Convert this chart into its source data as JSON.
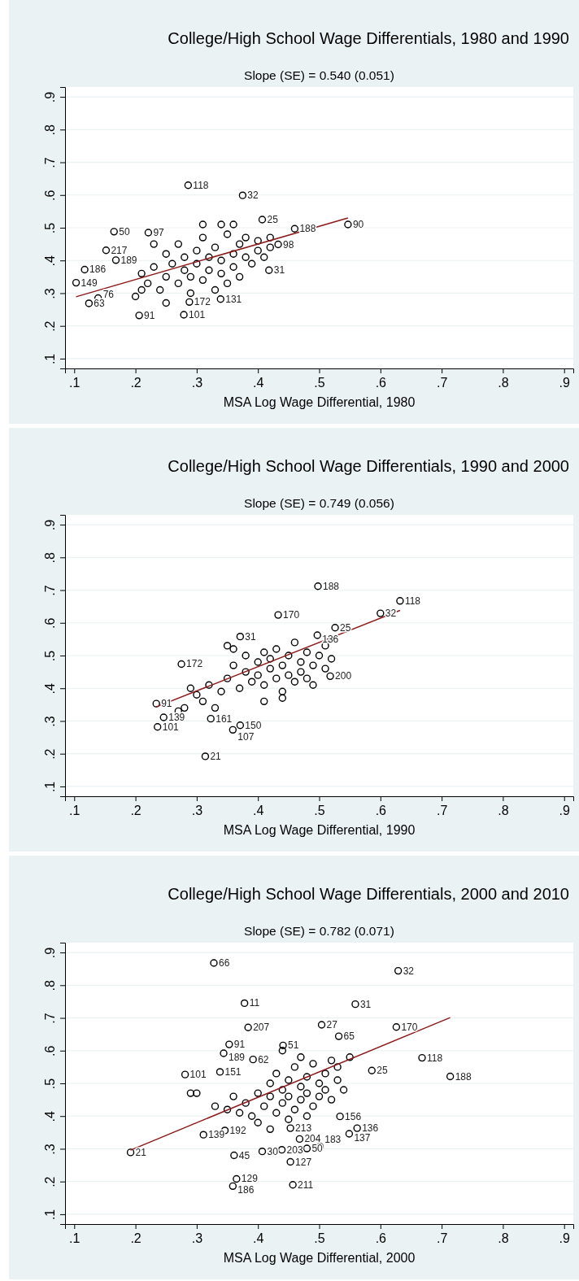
{
  "chart_data": [
    {
      "type": "scatter",
      "title": "College/High School Wage Differentials, 1980 and 1990",
      "subtitle": "Slope (SE) = 0.540 (0.051)",
      "xlabel": "MSA Log Wage Differential, 1980",
      "xlim": [
        0.085,
        0.915
      ],
      "ylim": [
        0.07,
        0.93
      ],
      "xticks": [
        {
          "value": 0.1,
          "label": ".1"
        },
        {
          "value": 0.2,
          "label": ".2"
        },
        {
          "value": 0.3,
          "label": ".3"
        },
        {
          "value": 0.4,
          "label": ".4"
        },
        {
          "value": 0.5,
          "label": ".5"
        },
        {
          "value": 0.6,
          "label": ".6"
        },
        {
          "value": 0.7,
          "label": ".7"
        },
        {
          "value": 0.8,
          "label": ".8"
        },
        {
          "value": 0.9,
          "label": ".9"
        }
      ],
      "yticks": [
        {
          "value": 0.1,
          "label": ".1"
        },
        {
          "value": 0.2,
          "label": ".2"
        },
        {
          "value": 0.3,
          "label": ".3"
        },
        {
          "value": 0.4,
          "label": ".4"
        },
        {
          "value": 0.5,
          "label": ".5"
        },
        {
          "value": 0.6,
          "label": ".6"
        },
        {
          "value": 0.7,
          "label": ".7"
        },
        {
          "value": 0.8,
          "label": ".8"
        },
        {
          "value": 0.9,
          "label": ".9"
        }
      ],
      "grid": "y",
      "marker": "circle",
      "series": [
        {
          "type": "scatter",
          "color": "#000000",
          "x": [
            0.286,
            0.375,
            0.547,
            0.407,
            0.46,
            0.165,
            0.221,
            0.152,
            0.168,
            0.117,
            0.103,
            0.124,
            0.139,
            0.206,
            0.279,
            0.339,
            0.288,
            0.433,
            0.418,
            0.21,
            0.22,
            0.23,
            0.24,
            0.25,
            0.25,
            0.26,
            0.27,
            0.27,
            0.28,
            0.28,
            0.29,
            0.29,
            0.3,
            0.3,
            0.31,
            0.31,
            0.32,
            0.32,
            0.33,
            0.33,
            0.34,
            0.34,
            0.35,
            0.35,
            0.36,
            0.36,
            0.37,
            0.37,
            0.38,
            0.38,
            0.39,
            0.4,
            0.4,
            0.41,
            0.42,
            0.42,
            0.36,
            0.31,
            0.34,
            0.23,
            0.21,
            0.25,
            0.2
          ],
          "values": [
            0.63,
            0.599,
            0.51,
            0.525,
            0.497,
            0.488,
            0.485,
            0.431,
            0.401,
            0.372,
            0.332,
            0.269,
            0.285,
            0.232,
            0.234,
            0.282,
            0.273,
            0.449,
            0.37,
            0.36,
            0.33,
            0.38,
            0.31,
            0.35,
            0.42,
            0.39,
            0.33,
            0.45,
            0.37,
            0.41,
            0.3,
            0.35,
            0.39,
            0.43,
            0.34,
            0.47,
            0.37,
            0.41,
            0.31,
            0.44,
            0.36,
            0.4,
            0.48,
            0.33,
            0.42,
            0.38,
            0.45,
            0.35,
            0.41,
            0.47,
            0.39,
            0.43,
            0.46,
            0.41,
            0.47,
            0.44,
            0.51,
            0.51,
            0.51,
            0.45,
            0.31,
            0.27,
            0.29
          ]
        },
        {
          "type": "line",
          "color": "#8b1a1a",
          "marker": "none",
          "x": [
            0.103,
            0.547
          ],
          "values": [
            0.289,
            0.53
          ]
        }
      ],
      "annotations": [
        {
          "text": "118",
          "x": 0.286,
          "y": 0.63
        },
        {
          "text": "32",
          "x": 0.375,
          "y": 0.599
        },
        {
          "text": "90",
          "x": 0.547,
          "y": 0.51
        },
        {
          "text": "25",
          "x": 0.407,
          "y": 0.525
        },
        {
          "text": "188",
          "x": 0.46,
          "y": 0.497
        },
        {
          "text": "50",
          "x": 0.165,
          "y": 0.488
        },
        {
          "text": "97",
          "x": 0.221,
          "y": 0.485
        },
        {
          "text": "217",
          "x": 0.152,
          "y": 0.431
        },
        {
          "text": "189",
          "x": 0.168,
          "y": 0.401
        },
        {
          "text": "186",
          "x": 0.117,
          "y": 0.372
        },
        {
          "text": "149",
          "x": 0.103,
          "y": 0.332
        },
        {
          "text": "63",
          "x": 0.124,
          "y": 0.269
        },
        {
          "text": "76",
          "x": 0.139,
          "y": 0.285
        },
        {
          "text": "91",
          "x": 0.206,
          "y": 0.232
        },
        {
          "text": "101",
          "x": 0.279,
          "y": 0.234
        },
        {
          "text": "131",
          "x": 0.339,
          "y": 0.282
        },
        {
          "text": "172",
          "x": 0.288,
          "y": 0.273
        },
        {
          "text": "98",
          "x": 0.433,
          "y": 0.449
        },
        {
          "text": "31",
          "x": 0.418,
          "y": 0.37
        }
      ]
    },
    {
      "type": "scatter",
      "title": "College/High School Wage Differentials, 1990 and 2000",
      "subtitle": "Slope (SE) = 0.749 (0.056)",
      "xlabel": "MSA Log Wage Differential, 1990",
      "xlim": [
        0.085,
        0.915
      ],
      "ylim": [
        0.07,
        0.93
      ],
      "xticks": [
        {
          "value": 0.1,
          "label": ".1"
        },
        {
          "value": 0.2,
          "label": ".2"
        },
        {
          "value": 0.3,
          "label": ".3"
        },
        {
          "value": 0.4,
          "label": ".4"
        },
        {
          "value": 0.5,
          "label": ".5"
        },
        {
          "value": 0.6,
          "label": ".6"
        },
        {
          "value": 0.7,
          "label": ".7"
        },
        {
          "value": 0.8,
          "label": ".8"
        },
        {
          "value": 0.9,
          "label": ".9"
        }
      ],
      "yticks": [
        {
          "value": 0.1,
          "label": ".1"
        },
        {
          "value": 0.2,
          "label": ".2"
        },
        {
          "value": 0.3,
          "label": ".3"
        },
        {
          "value": 0.4,
          "label": ".4"
        },
        {
          "value": 0.5,
          "label": ".5"
        },
        {
          "value": 0.6,
          "label": ".6"
        },
        {
          "value": 0.7,
          "label": ".7"
        },
        {
          "value": 0.8,
          "label": ".8"
        },
        {
          "value": 0.9,
          "label": ".9"
        }
      ],
      "grid": "y",
      "marker": "circle",
      "series": [
        {
          "type": "scatter",
          "color": "#000000",
          "x": [
            0.498,
            0.632,
            0.6,
            0.433,
            0.526,
            0.275,
            0.234,
            0.246,
            0.236,
            0.323,
            0.371,
            0.359,
            0.314,
            0.518,
            0.371,
            0.497,
            0.29,
            0.3,
            0.31,
            0.32,
            0.33,
            0.34,
            0.35,
            0.36,
            0.36,
            0.37,
            0.38,
            0.38,
            0.39,
            0.4,
            0.4,
            0.41,
            0.41,
            0.42,
            0.42,
            0.43,
            0.43,
            0.44,
            0.44,
            0.45,
            0.45,
            0.46,
            0.46,
            0.47,
            0.47,
            0.48,
            0.48,
            0.49,
            0.49,
            0.5,
            0.51,
            0.51,
            0.52,
            0.35,
            0.27,
            0.28,
            0.41,
            0.44
          ],
          "values": [
            0.712,
            0.667,
            0.629,
            0.624,
            0.585,
            0.474,
            0.353,
            0.311,
            0.282,
            0.307,
            0.287,
            0.273,
            0.192,
            0.437,
            0.558,
            0.562,
            0.4,
            0.38,
            0.36,
            0.41,
            0.34,
            0.39,
            0.43,
            0.47,
            0.52,
            0.4,
            0.45,
            0.5,
            0.42,
            0.48,
            0.44,
            0.51,
            0.41,
            0.46,
            0.49,
            0.43,
            0.52,
            0.47,
            0.39,
            0.5,
            0.44,
            0.54,
            0.42,
            0.48,
            0.45,
            0.51,
            0.43,
            0.47,
            0.41,
            0.5,
            0.46,
            0.53,
            0.49,
            0.53,
            0.33,
            0.34,
            0.36,
            0.37
          ]
        },
        {
          "type": "line",
          "color": "#8b1a1a",
          "marker": "none",
          "x": [
            0.234,
            0.632
          ],
          "values": [
            0.343,
            0.638
          ]
        }
      ],
      "annotations": [
        {
          "text": "188",
          "x": 0.498,
          "y": 0.712
        },
        {
          "text": "118",
          "x": 0.632,
          "y": 0.667
        },
        {
          "text": "32",
          "x": 0.6,
          "y": 0.629
        },
        {
          "text": "170",
          "x": 0.433,
          "y": 0.624
        },
        {
          "text": "25",
          "x": 0.526,
          "y": 0.585
        },
        {
          "text": "172",
          "x": 0.275,
          "y": 0.474
        },
        {
          "text": "91",
          "x": 0.234,
          "y": 0.353
        },
        {
          "text": "139",
          "x": 0.246,
          "y": 0.311
        },
        {
          "text": "101",
          "x": 0.236,
          "y": 0.282
        },
        {
          "text": "161",
          "x": 0.323,
          "y": 0.307
        },
        {
          "text": "150",
          "x": 0.371,
          "y": 0.287
        },
        {
          "text": "107",
          "x": 0.359,
          "y": 0.273
        },
        {
          "text": "21",
          "x": 0.314,
          "y": 0.192
        },
        {
          "text": "200",
          "x": 0.518,
          "y": 0.437
        },
        {
          "text": "31",
          "x": 0.371,
          "y": 0.558
        },
        {
          "text": "136",
          "x": 0.497,
          "y": 0.562
        }
      ]
    },
    {
      "type": "scatter",
      "title": "College/High School Wage Differentials, 2000 and 2010",
      "subtitle": "Slope (SE) = 0.782 (0.071)",
      "xlabel": "MSA Log Wage Differential, 2000",
      "xlim": [
        0.085,
        0.915
      ],
      "ylim": [
        0.07,
        0.93
      ],
      "xticks": [
        {
          "value": 0.1,
          "label": ".1"
        },
        {
          "value": 0.2,
          "label": ".2"
        },
        {
          "value": 0.3,
          "label": ".3"
        },
        {
          "value": 0.4,
          "label": ".4"
        },
        {
          "value": 0.5,
          "label": ".5"
        },
        {
          "value": 0.6,
          "label": ".6"
        },
        {
          "value": 0.7,
          "label": ".7"
        },
        {
          "value": 0.8,
          "label": ".8"
        },
        {
          "value": 0.9,
          "label": ".9"
        }
      ],
      "yticks": [
        {
          "value": 0.1,
          "label": ".1"
        },
        {
          "value": 0.2,
          "label": ".2"
        },
        {
          "value": 0.3,
          "label": ".3"
        },
        {
          "value": 0.4,
          "label": ".4"
        },
        {
          "value": 0.5,
          "label": ".5"
        },
        {
          "value": 0.6,
          "label": ".6"
        },
        {
          "value": 0.7,
          "label": ".7"
        },
        {
          "value": 0.8,
          "label": ".8"
        },
        {
          "value": 0.9,
          "label": ".9"
        }
      ],
      "grid": "y",
      "marker": "circle",
      "series": [
        {
          "type": "scatter",
          "color": "#000000",
          "x": [
            0.328,
            0.629,
            0.378,
            0.559,
            0.504,
            0.626,
            0.384,
            0.668,
            0.714,
            0.586,
            0.281,
            0.338,
            0.353,
            0.344,
            0.392,
            0.441,
            0.532,
            0.192,
            0.311,
            0.361,
            0.407,
            0.439,
            0.48,
            0.501,
            0.453,
            0.365,
            0.359,
            0.457,
            0.453,
            0.468,
            0.562,
            0.549,
            0.534,
            0.346,
            0.33,
            0.35,
            0.37,
            0.38,
            0.39,
            0.4,
            0.41,
            0.42,
            0.42,
            0.43,
            0.43,
            0.44,
            0.44,
            0.45,
            0.45,
            0.46,
            0.46,
            0.47,
            0.47,
            0.48,
            0.48,
            0.49,
            0.49,
            0.5,
            0.5,
            0.51,
            0.51,
            0.52,
            0.52,
            0.53,
            0.53,
            0.54,
            0.55,
            0.4,
            0.42,
            0.45,
            0.48,
            0.44,
            0.47,
            0.36,
            0.3,
            0.29
          ],
          "values": [
            0.868,
            0.844,
            0.745,
            0.742,
            0.679,
            0.672,
            0.671,
            0.578,
            0.521,
            0.539,
            0.527,
            0.535,
            0.619,
            0.592,
            0.573,
            0.616,
            0.644,
            0.289,
            0.343,
            0.28,
            0.292,
            0.297,
            0.301,
            0.307,
            0.26,
            0.208,
            0.186,
            0.19,
            0.363,
            0.33,
            0.363,
            0.346,
            0.399,
            0.356,
            0.43,
            0.42,
            0.41,
            0.44,
            0.4,
            0.47,
            0.43,
            0.5,
            0.46,
            0.41,
            0.53,
            0.48,
            0.44,
            0.51,
            0.46,
            0.55,
            0.42,
            0.49,
            0.45,
            0.52,
            0.47,
            0.56,
            0.43,
            0.5,
            0.46,
            0.53,
            0.48,
            0.57,
            0.45,
            0.51,
            0.55,
            0.48,
            0.58,
            0.38,
            0.36,
            0.39,
            0.4,
            0.6,
            0.58,
            0.46,
            0.47,
            0.47
          ]
        },
        {
          "type": "line",
          "color": "#8b1a1a",
          "marker": "none",
          "x": [
            0.192,
            0.714
          ],
          "values": [
            0.296,
            0.701
          ]
        }
      ],
      "annotations": [
        {
          "text": "66",
          "x": 0.328,
          "y": 0.868
        },
        {
          "text": "32",
          "x": 0.629,
          "y": 0.844
        },
        {
          "text": "11",
          "x": 0.378,
          "y": 0.745
        },
        {
          "text": "31",
          "x": 0.559,
          "y": 0.742
        },
        {
          "text": "27",
          "x": 0.504,
          "y": 0.679
        },
        {
          "text": "170",
          "x": 0.626,
          "y": 0.672
        },
        {
          "text": "207",
          "x": 0.384,
          "y": 0.671
        },
        {
          "text": "118",
          "x": 0.668,
          "y": 0.578
        },
        {
          "text": "188",
          "x": 0.714,
          "y": 0.521
        },
        {
          "text": "25",
          "x": 0.586,
          "y": 0.539
        },
        {
          "text": "101",
          "x": 0.281,
          "y": 0.527
        },
        {
          "text": "151",
          "x": 0.338,
          "y": 0.535
        },
        {
          "text": "91",
          "x": 0.353,
          "y": 0.619
        },
        {
          "text": "189",
          "x": 0.344,
          "y": 0.592
        },
        {
          "text": "62",
          "x": 0.392,
          "y": 0.573
        },
        {
          "text": "51",
          "x": 0.441,
          "y": 0.616
        },
        {
          "text": "65",
          "x": 0.532,
          "y": 0.644
        },
        {
          "text": "21",
          "x": 0.192,
          "y": 0.289
        },
        {
          "text": "139",
          "x": 0.311,
          "y": 0.343
        },
        {
          "text": "45",
          "x": 0.361,
          "y": 0.28
        },
        {
          "text": "30",
          "x": 0.407,
          "y": 0.292
        },
        {
          "text": "203",
          "x": 0.439,
          "y": 0.297
        },
        {
          "text": "50",
          "x": 0.48,
          "y": 0.301
        },
        {
          "text": "183",
          "x": 0.501,
          "y": 0.307
        },
        {
          "text": "127",
          "x": 0.453,
          "y": 0.26
        },
        {
          "text": "129",
          "x": 0.365,
          "y": 0.208
        },
        {
          "text": "186",
          "x": 0.359,
          "y": 0.186
        },
        {
          "text": "211",
          "x": 0.457,
          "y": 0.19
        },
        {
          "text": "213",
          "x": 0.453,
          "y": 0.363
        },
        {
          "text": "204",
          "x": 0.468,
          "y": 0.33
        },
        {
          "text": "136",
          "x": 0.562,
          "y": 0.363
        },
        {
          "text": "137",
          "x": 0.549,
          "y": 0.346
        },
        {
          "text": "156",
          "x": 0.534,
          "y": 0.399
        },
        {
          "text": "192",
          "x": 0.346,
          "y": 0.356
        }
      ]
    }
  ]
}
